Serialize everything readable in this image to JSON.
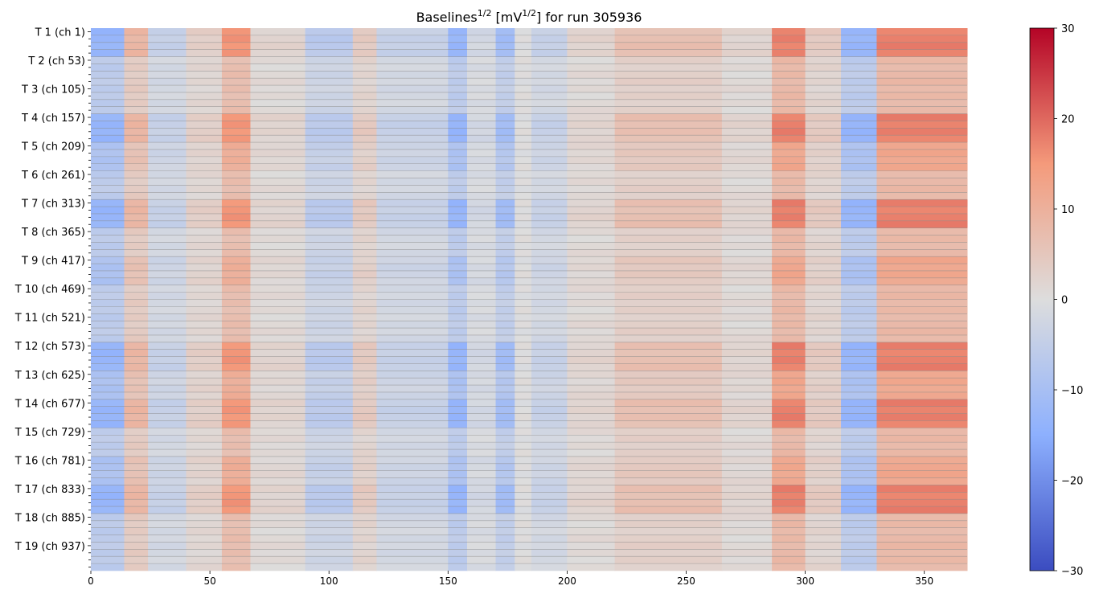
{
  "chart_data": {
    "type": "heatmap",
    "title": {
      "prefix": "Baselines",
      "sup1": "1/2",
      "mid": " [mV",
      "sup2": "1/2",
      "suffix": "] for run 305936"
    },
    "xlabel": "",
    "ylabel": "",
    "xlim": [
      0,
      368
    ],
    "x_ticks": [
      0,
      50,
      100,
      150,
      200,
      250,
      300,
      350
    ],
    "y_groups": 19,
    "y_rows_per_group": 4,
    "y_tick_labels": [
      "T 1 (ch 1)",
      "T 2 (ch 53)",
      "T 3 (ch 105)",
      "T 4 (ch 157)",
      "T 5 (ch 209)",
      "T 6 (ch 261)",
      "T 7 (ch 313)",
      "T 8 (ch 365)",
      "T 9 (ch 417)",
      "T 10 (ch 469)",
      "T 11 (ch 521)",
      "T 12 (ch 573)",
      "T 13 (ch 625)",
      "T 14 (ch 677)",
      "T 15 (ch 729)",
      "T 16 (ch 781)",
      "T 17 (ch 833)",
      "T 18 (ch 885)",
      "T 19 (ch 937)"
    ],
    "colormap": "coolwarm",
    "colorbar": {
      "min": -30,
      "max": 30,
      "ticks": [
        30,
        20,
        10,
        0,
        -10,
        -20,
        -30
      ],
      "tick_labels": [
        "30",
        "20",
        "10",
        "0",
        "−10",
        "−20",
        "−30"
      ]
    },
    "column_profile": [
      {
        "x": [
          0,
          14
        ],
        "value": -6
      },
      {
        "x": [
          14,
          24
        ],
        "value": 4
      },
      {
        "x": [
          24,
          40
        ],
        "value": -2
      },
      {
        "x": [
          40,
          55
        ],
        "value": 1.5
      },
      {
        "x": [
          55,
          67
        ],
        "value": 7
      },
      {
        "x": [
          67,
          90
        ],
        "value": 1
      },
      {
        "x": [
          90,
          110
        ],
        "value": -3
      },
      {
        "x": [
          110,
          120
        ],
        "value": 2
      },
      {
        "x": [
          120,
          150
        ],
        "value": -2
      },
      {
        "x": [
          150,
          158
        ],
        "value": -6
      },
      {
        "x": [
          158,
          170
        ],
        "value": -1
      },
      {
        "x": [
          170,
          178
        ],
        "value": -5
      },
      {
        "x": [
          178,
          185
        ],
        "value": 0
      },
      {
        "x": [
          185,
          200
        ],
        "value": -2
      },
      {
        "x": [
          200,
          220
        ],
        "value": 1
      },
      {
        "x": [
          220,
          265
        ],
        "value": 3
      },
      {
        "x": [
          265,
          286
        ],
        "value": 1
      },
      {
        "x": [
          286,
          300
        ],
        "value": 8
      },
      {
        "x": [
          300,
          315
        ],
        "value": 2
      },
      {
        "x": [
          315,
          330
        ],
        "value": -6
      },
      {
        "x": [
          330,
          368
        ],
        "value": 8
      }
    ],
    "highlighted_groups": [
      1,
      4,
      7,
      12,
      14,
      17
    ],
    "mid_highlight_groups": [
      5,
      9,
      13,
      16
    ],
    "grid": true,
    "legend": "colorbar-right"
  }
}
